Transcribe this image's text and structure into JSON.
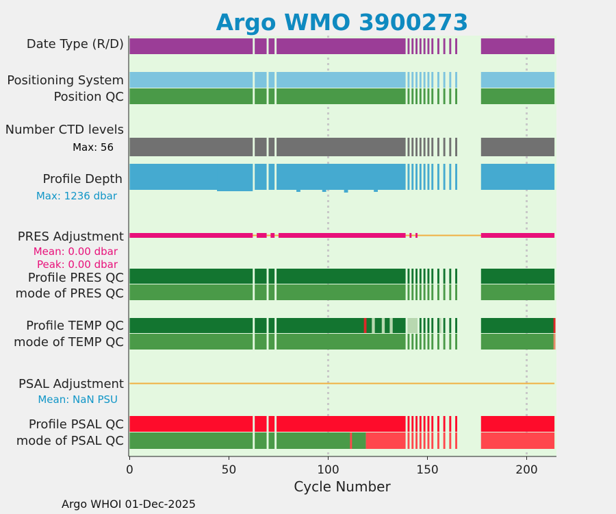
{
  "chart_data": {
    "type": "float-cycle-timeline",
    "title": "Argo WMO 3900273",
    "xlabel": "Cycle Number",
    "xlim": [
      -0.5,
      215
    ],
    "xticks": [
      0,
      50,
      100,
      150,
      200
    ],
    "footer": "Argo WHOI 01-Dec-2025",
    "labels": {
      "date_type": "Date Type (R/D)",
      "positioning": "Positioning System",
      "position_qc": "Position QC",
      "ctd_levels": "Number CTD levels",
      "ctd_max": "Max: 56",
      "profile_depth": "Profile Depth",
      "depth_max": "Max: 1236 dbar",
      "pres_adj": "PRES Adjustment",
      "pres_mean": "Mean: 0.00 dbar",
      "pres_peak": "Peak: 0.00 dbar",
      "pres_qc": "Profile PRES QC",
      "pres_mode": "mode of PRES QC",
      "temp_qc": "Profile TEMP QC",
      "temp_mode": "mode of TEMP QC",
      "psal_adj": "PSAL Adjustment",
      "psal_mean": "Mean:  NaN PSU",
      "psal_qc": "Profile PSAL QC",
      "psal_mode": "mode of PSAL QC"
    },
    "cycle_segments": [
      [
        0,
        62
      ],
      [
        63,
        69
      ],
      [
        70,
        73
      ],
      [
        74,
        139
      ],
      [
        140,
        141
      ],
      [
        142,
        143
      ],
      [
        144,
        145
      ],
      [
        146,
        147
      ],
      [
        148,
        149
      ],
      [
        150,
        151
      ],
      [
        152,
        153
      ],
      [
        155,
        156
      ],
      [
        158,
        159
      ],
      [
        161,
        162
      ],
      [
        164,
        165
      ],
      [
        177,
        214
      ]
    ],
    "colors": {
      "plot_bg": "#e4f8e0",
      "date_type": "#9b3d97",
      "positioning": "#7dc4de",
      "qc_green": "#4a9a48",
      "qc_dark_green": "#137530",
      "ctd": "#717171",
      "depth": "#45aad0",
      "pres_adj": "#e8107a",
      "adj_line": "#f0b040",
      "psal_red": "#fe0c2b",
      "psal_light_red": "#ff474d",
      "temp_bad": "#dc2828",
      "temp_light": "#b8d8b0",
      "title": "#0f8ac0",
      "sub_blue": "#1196c7",
      "sub_pink": "#e8107a",
      "grid": "#c8c8c8"
    }
  }
}
